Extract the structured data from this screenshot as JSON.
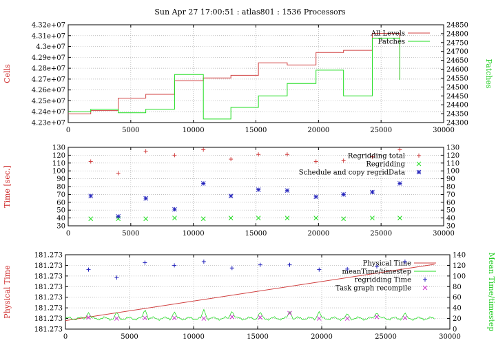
{
  "page_title": "Sun Apr 27 17:00:51 : atlas801 : 1536 Processors",
  "colors": {
    "red": "#d04040",
    "green": "#22dd22",
    "blue": "#2222bb",
    "magenta": "#cc33cc",
    "grid": "#aaaaaa"
  },
  "chart_data": [
    {
      "type": "line",
      "ylabel": "Cells",
      "y2label": "Patches",
      "xlim": [
        0,
        30000
      ],
      "ylim": [
        42300000,
        43200000
      ],
      "y2lim": [
        24300,
        24850
      ],
      "xticks": [
        "0",
        "5000",
        "10000",
        "15000",
        "20000",
        "25000",
        "30000"
      ],
      "yticks": [
        "4.23e+07",
        "4.24e+07",
        "4.25e+07",
        "4.26e+07",
        "4.27e+07",
        "4.28e+07",
        "4.29e+07",
        "4.3e+07",
        "4.31e+07",
        "4.32e+07"
      ],
      "y2ticks": [
        "24300",
        "24350",
        "24400",
        "24450",
        "24500",
        "24550",
        "24600",
        "24650",
        "24700",
        "24750",
        "24800",
        "24850"
      ],
      "series": [
        {
          "name": "All Levels",
          "axis": "y",
          "color": "#d04040",
          "step": true,
          "x": [
            0,
            1800,
            4000,
            6200,
            8500,
            10800,
            13000,
            15200,
            17500,
            19800,
            22000,
            24300,
            26500
          ],
          "y": [
            42380000,
            42410000,
            42525000,
            42560000,
            42685000,
            42710000,
            42735000,
            42850000,
            42830000,
            42945000,
            42965000,
            43120000,
            42700000
          ]
        },
        {
          "name": "Patches",
          "axis": "y2",
          "color": "#22dd22",
          "step": true,
          "x": [
            0,
            1800,
            4000,
            6200,
            8500,
            10800,
            13000,
            15200,
            17500,
            19800,
            22000,
            24300,
            26500
          ],
          "y": [
            24360,
            24375,
            24355,
            24375,
            24570,
            24320,
            24385,
            24450,
            24520,
            24595,
            24450,
            24775,
            24540
          ]
        }
      ],
      "legend": "top-right"
    },
    {
      "type": "scatter",
      "ylabel": "Time [sec.]",
      "xlim": [
        0,
        30000
      ],
      "ylim": [
        30,
        130
      ],
      "y2lim": [
        30,
        130
      ],
      "xticks": [
        "0",
        "5000",
        "10000",
        "15000",
        "20000",
        "25000",
        "30000"
      ],
      "yticks": [
        "30",
        "40",
        "50",
        "60",
        "70",
        "80",
        "90",
        "100",
        "110",
        "120",
        "130"
      ],
      "y2ticks": [
        "30",
        "40",
        "50",
        "60",
        "70",
        "80",
        "90",
        "100",
        "110",
        "120",
        "130"
      ],
      "series": [
        {
          "name": "Regridding total",
          "marker": "+",
          "color": "#d04040",
          "x": [
            1800,
            4000,
            6200,
            8500,
            10800,
            13000,
            15200,
            17500,
            19800,
            22000,
            24300,
            26500
          ],
          "y": [
            112,
            97,
            125,
            120,
            127,
            115,
            121,
            121,
            112,
            113,
            118,
            127
          ]
        },
        {
          "name": "Regridding",
          "marker": "x",
          "color": "#22dd22",
          "x": [
            1800,
            4000,
            6200,
            8500,
            10800,
            13000,
            15200,
            17500,
            19800,
            22000,
            24300,
            26500
          ],
          "y": [
            39,
            39,
            39,
            40,
            39,
            40,
            40,
            40,
            40,
            39,
            40,
            40
          ]
        },
        {
          "name": "Schedule and copy regridData",
          "marker": "*",
          "color": "#2222bb",
          "x": [
            1800,
            4000,
            6200,
            8500,
            10800,
            13000,
            15200,
            17500,
            19800,
            22000,
            24300,
            26500
          ],
          "y": [
            68,
            42,
            65,
            51,
            84,
            68,
            76,
            75,
            67,
            70,
            73,
            84
          ]
        }
      ],
      "legend": "top-right"
    },
    {
      "type": "line",
      "ylabel": "Physical Time",
      "y2label": "Mean Time/timestep",
      "xlim": [
        0,
        30000
      ],
      "ylim": [
        0,
        140
      ],
      "y2lim": [
        0,
        140
      ],
      "xticks": [
        "0",
        "5000",
        "10000",
        "15000",
        "20000",
        "25000",
        "30000"
      ],
      "yticks": [
        "181.273",
        "181.273",
        "181.273",
        "181.273",
        "181.273",
        "181.273",
        "181.273",
        "181.273"
      ],
      "y2ticks": [
        "0",
        "20",
        "40",
        "60",
        "80",
        "100",
        "120",
        "140"
      ],
      "series": [
        {
          "name": "Physical Time",
          "type": "line",
          "color": "#d04040",
          "x": [
            0,
            28800
          ],
          "y": [
            16,
            122
          ]
        },
        {
          "name": "meanTime/timestep",
          "type": "line",
          "color": "#22dd22",
          "spike_x": [
            1800,
            4000,
            6200,
            8500,
            10800,
            13000,
            15200,
            17500,
            19800,
            22000,
            24300,
            26500
          ],
          "spike_y": [
            31,
            33,
            38,
            33,
            37,
            35,
            33,
            34,
            33,
            30,
            32,
            31
          ],
          "base_y": 20
        },
        {
          "name": "regridding Time",
          "marker": "+",
          "color": "#2222bb",
          "x": [
            1800,
            4000,
            6200,
            8500,
            10800,
            13000,
            15200,
            17500,
            19800,
            22000,
            24300,
            26500
          ],
          "y": [
            112,
            97,
            125,
            120,
            127,
            115,
            121,
            121,
            112,
            113,
            118,
            127
          ]
        },
        {
          "name": "Task graph recompile",
          "marker": "x",
          "color": "#cc33cc",
          "x": [
            1800,
            4000,
            6200,
            8500,
            10800,
            13000,
            15200,
            17500,
            19800,
            22000,
            24300,
            26500
          ],
          "y": [
            22,
            20,
            21,
            21,
            20,
            23,
            22,
            30,
            20,
            20,
            23,
            21
          ]
        }
      ],
      "legend": "top-right"
    }
  ]
}
